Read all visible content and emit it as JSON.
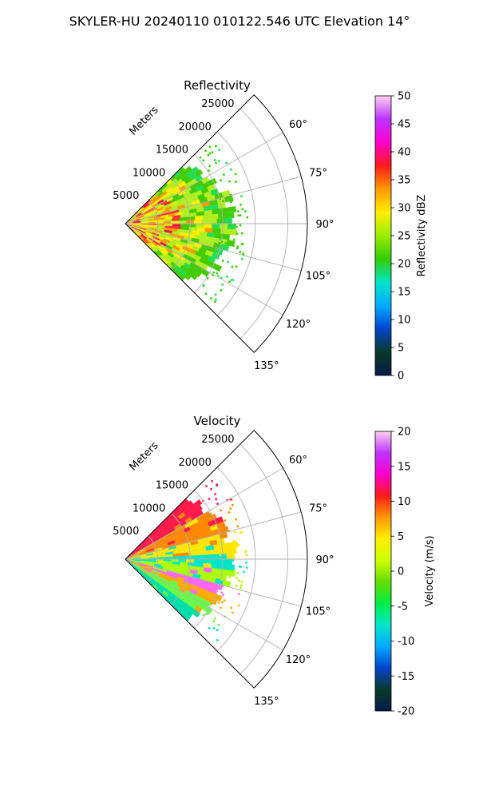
{
  "figure_title": "SKYLER-HU  20240110  010122.546 UTC Elevation 14°",
  "chart_data": [
    {
      "type": "heatmap",
      "title": "Reflectivity",
      "radial_axis_label": "Meters",
      "radial_ticks": [
        "5000",
        "10000",
        "15000",
        "20000",
        "25000"
      ],
      "radial_range": [
        0,
        28000
      ],
      "angle_ticks": [
        "60°",
        "75°",
        "90°",
        "105°",
        "120°",
        "135°"
      ],
      "angle_range_deg": [
        45,
        135
      ],
      "grid": true,
      "data_extent_m": 17000,
      "colorbar": {
        "label": "Reflectivity dBZ",
        "ticks": [
          "0",
          "5",
          "10",
          "15",
          "20",
          "25",
          "30",
          "35",
          "40",
          "45",
          "50"
        ],
        "range": [
          0,
          50
        ],
        "colors": [
          "#061a4a",
          "#0a3a2a",
          "#0044cc",
          "#00aaff",
          "#00e6c8",
          "#33cc00",
          "#99ee00",
          "#ffee00",
          "#ff9900",
          "#ff1a1a",
          "#ff00cc",
          "#bb33ff",
          "#ffd0f0"
        ]
      },
      "dominant_colors": [
        "#b0ee22",
        "#ffee00",
        "#ff9900",
        "#ff3333",
        "#e8104a",
        "#44cc00",
        "#22dd55"
      ]
    },
    {
      "type": "heatmap",
      "title": "Velocity",
      "radial_axis_label": "Meters",
      "radial_ticks": [
        "5000",
        "10000",
        "15000",
        "20000",
        "25000"
      ],
      "radial_range": [
        0,
        28000
      ],
      "angle_ticks": [
        "60°",
        "75°",
        "90°",
        "105°",
        "120°",
        "135°"
      ],
      "angle_range_deg": [
        45,
        135
      ],
      "grid": true,
      "data_extent_m": 17000,
      "colorbar": {
        "label": "Velocity (m/s)",
        "ticks": [
          "-20",
          "-15",
          "-10",
          "-5",
          "0",
          "5",
          "10",
          "15",
          "20"
        ],
        "range": [
          -20,
          20
        ],
        "colors": [
          "#061a4a",
          "#0a3a2a",
          "#0044cc",
          "#00aaff",
          "#00e6c8",
          "#00ee44",
          "#66dd00",
          "#ccff00",
          "#ffee00",
          "#ff9900",
          "#ff1a1a",
          "#ff00cc",
          "#bb33ff",
          "#ffd0f0"
        ]
      },
      "sector_bands": [
        {
          "from_deg": 45,
          "to_deg": 60,
          "color": "#ff1a4a"
        },
        {
          "from_deg": 60,
          "to_deg": 75,
          "color": "#ff8800"
        },
        {
          "from_deg": 75,
          "to_deg": 88,
          "color": "#ffe600"
        },
        {
          "from_deg": 88,
          "to_deg": 96,
          "color": "#00e6c8"
        },
        {
          "from_deg": 96,
          "to_deg": 104,
          "color": "#aaff00"
        },
        {
          "from_deg": 104,
          "to_deg": 110,
          "color": "#ff66ff"
        },
        {
          "from_deg": 110,
          "to_deg": 118,
          "color": "#ffaa00"
        },
        {
          "from_deg": 118,
          "to_deg": 126,
          "color": "#66ff44"
        },
        {
          "from_deg": 126,
          "to_deg": 135,
          "color": "#00ddaa"
        }
      ]
    }
  ]
}
